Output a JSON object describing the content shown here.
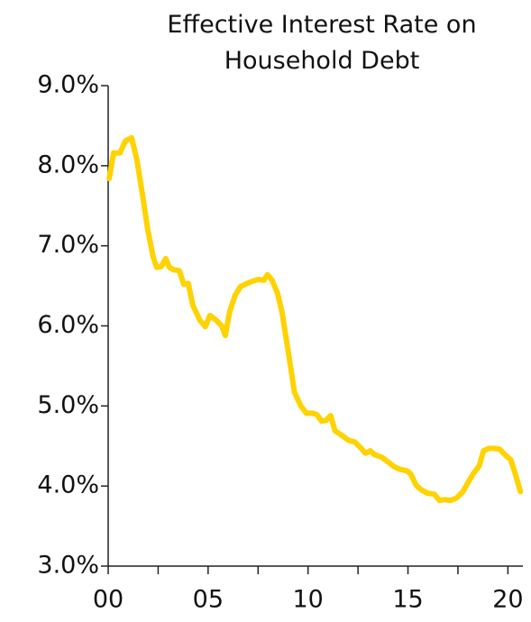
{
  "chart_data": {
    "type": "line",
    "title": "Effective Interest Rate on Household Debt",
    "xlim": [
      0,
      20.75
    ],
    "xticks": [
      {
        "value": 0,
        "label": "00"
      },
      {
        "value": 5,
        "label": "05"
      },
      {
        "value": 10,
        "label": "10"
      },
      {
        "value": 15,
        "label": "15"
      },
      {
        "value": 20,
        "label": "20"
      }
    ],
    "xminor_ticks": [
      2.5,
      7.5,
      12.5,
      17.5
    ],
    "ylim": [
      3,
      9
    ],
    "yticks": [
      {
        "value": 3,
        "label": "3.0%"
      },
      {
        "value": 4,
        "label": "4.0%"
      },
      {
        "value": 5,
        "label": "5.0%"
      },
      {
        "value": 6,
        "label": "6.0%"
      },
      {
        "value": 7,
        "label": "7.0%"
      },
      {
        "value": 8,
        "label": "8.0%"
      },
      {
        "value": 9,
        "label": "9.0%"
      }
    ],
    "grid": false,
    "series": [
      {
        "color": "#FFD200",
        "x": [
          0.05,
          0.27,
          0.59,
          0.86,
          1.17,
          1.44,
          1.71,
          1.98,
          2.25,
          2.43,
          2.66,
          2.88,
          3.06,
          3.29,
          3.56,
          3.78,
          4.01,
          4.23,
          4.59,
          4.86,
          5.09,
          5.41,
          5.68,
          5.86,
          6.08,
          6.35,
          6.62,
          6.94,
          7.25,
          7.52,
          7.79,
          7.97,
          8.2,
          8.47,
          8.69,
          9.01,
          9.32,
          9.64,
          9.91,
          10.23,
          10.45,
          10.68,
          10.9,
          11.13,
          11.35,
          11.71,
          12.03,
          12.34,
          12.66,
          12.88,
          13.11,
          13.33,
          13.69,
          14.01,
          14.32,
          14.59,
          14.95,
          15.14,
          15.41,
          15.68,
          15.99,
          16.31,
          16.58,
          16.85,
          17.12,
          17.43,
          17.75,
          18.02,
          18.29,
          18.56,
          18.78,
          19.05,
          19.32,
          19.59,
          19.86,
          20.14,
          20.36,
          20.63
        ],
        "values": [
          7.84,
          8.16,
          8.16,
          8.31,
          8.35,
          8.07,
          7.65,
          7.2,
          6.86,
          6.73,
          6.74,
          6.84,
          6.73,
          6.7,
          6.69,
          6.52,
          6.53,
          6.26,
          6.07,
          5.99,
          6.13,
          6.07,
          6.0,
          5.88,
          6.18,
          6.38,
          6.49,
          6.53,
          6.56,
          6.58,
          6.57,
          6.64,
          6.57,
          6.41,
          6.18,
          5.68,
          5.17,
          5.0,
          4.91,
          4.91,
          4.89,
          4.81,
          4.82,
          4.88,
          4.69,
          4.63,
          4.57,
          4.55,
          4.47,
          4.41,
          4.44,
          4.39,
          4.36,
          4.3,
          4.24,
          4.21,
          4.19,
          4.15,
          4.01,
          3.95,
          3.91,
          3.9,
          3.82,
          3.83,
          3.82,
          3.85,
          3.93,
          4.05,
          4.16,
          4.25,
          4.44,
          4.47,
          4.47,
          4.46,
          4.39,
          4.33,
          4.16,
          3.93
        ]
      }
    ]
  }
}
